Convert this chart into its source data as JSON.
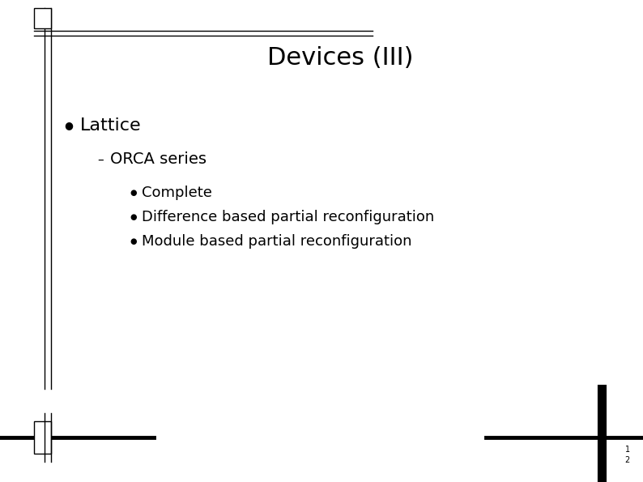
{
  "title": "Devices (III)",
  "title_fontsize": 22,
  "background_color": "#ffffff",
  "text_color": "#000000",
  "bullet1": "Lattice",
  "bullet1_fontsize": 16,
  "sub_bullet1": "ORCA series",
  "sub_bullet1_fontsize": 14,
  "sub_sub_bullets": [
    "Complete",
    "Difference based partial reconfiguration",
    "Module based partial reconfiguration"
  ],
  "sub_sub_bullet_fontsize": 13,
  "page_number_fontsize": 7,
  "line_color": "#000000"
}
